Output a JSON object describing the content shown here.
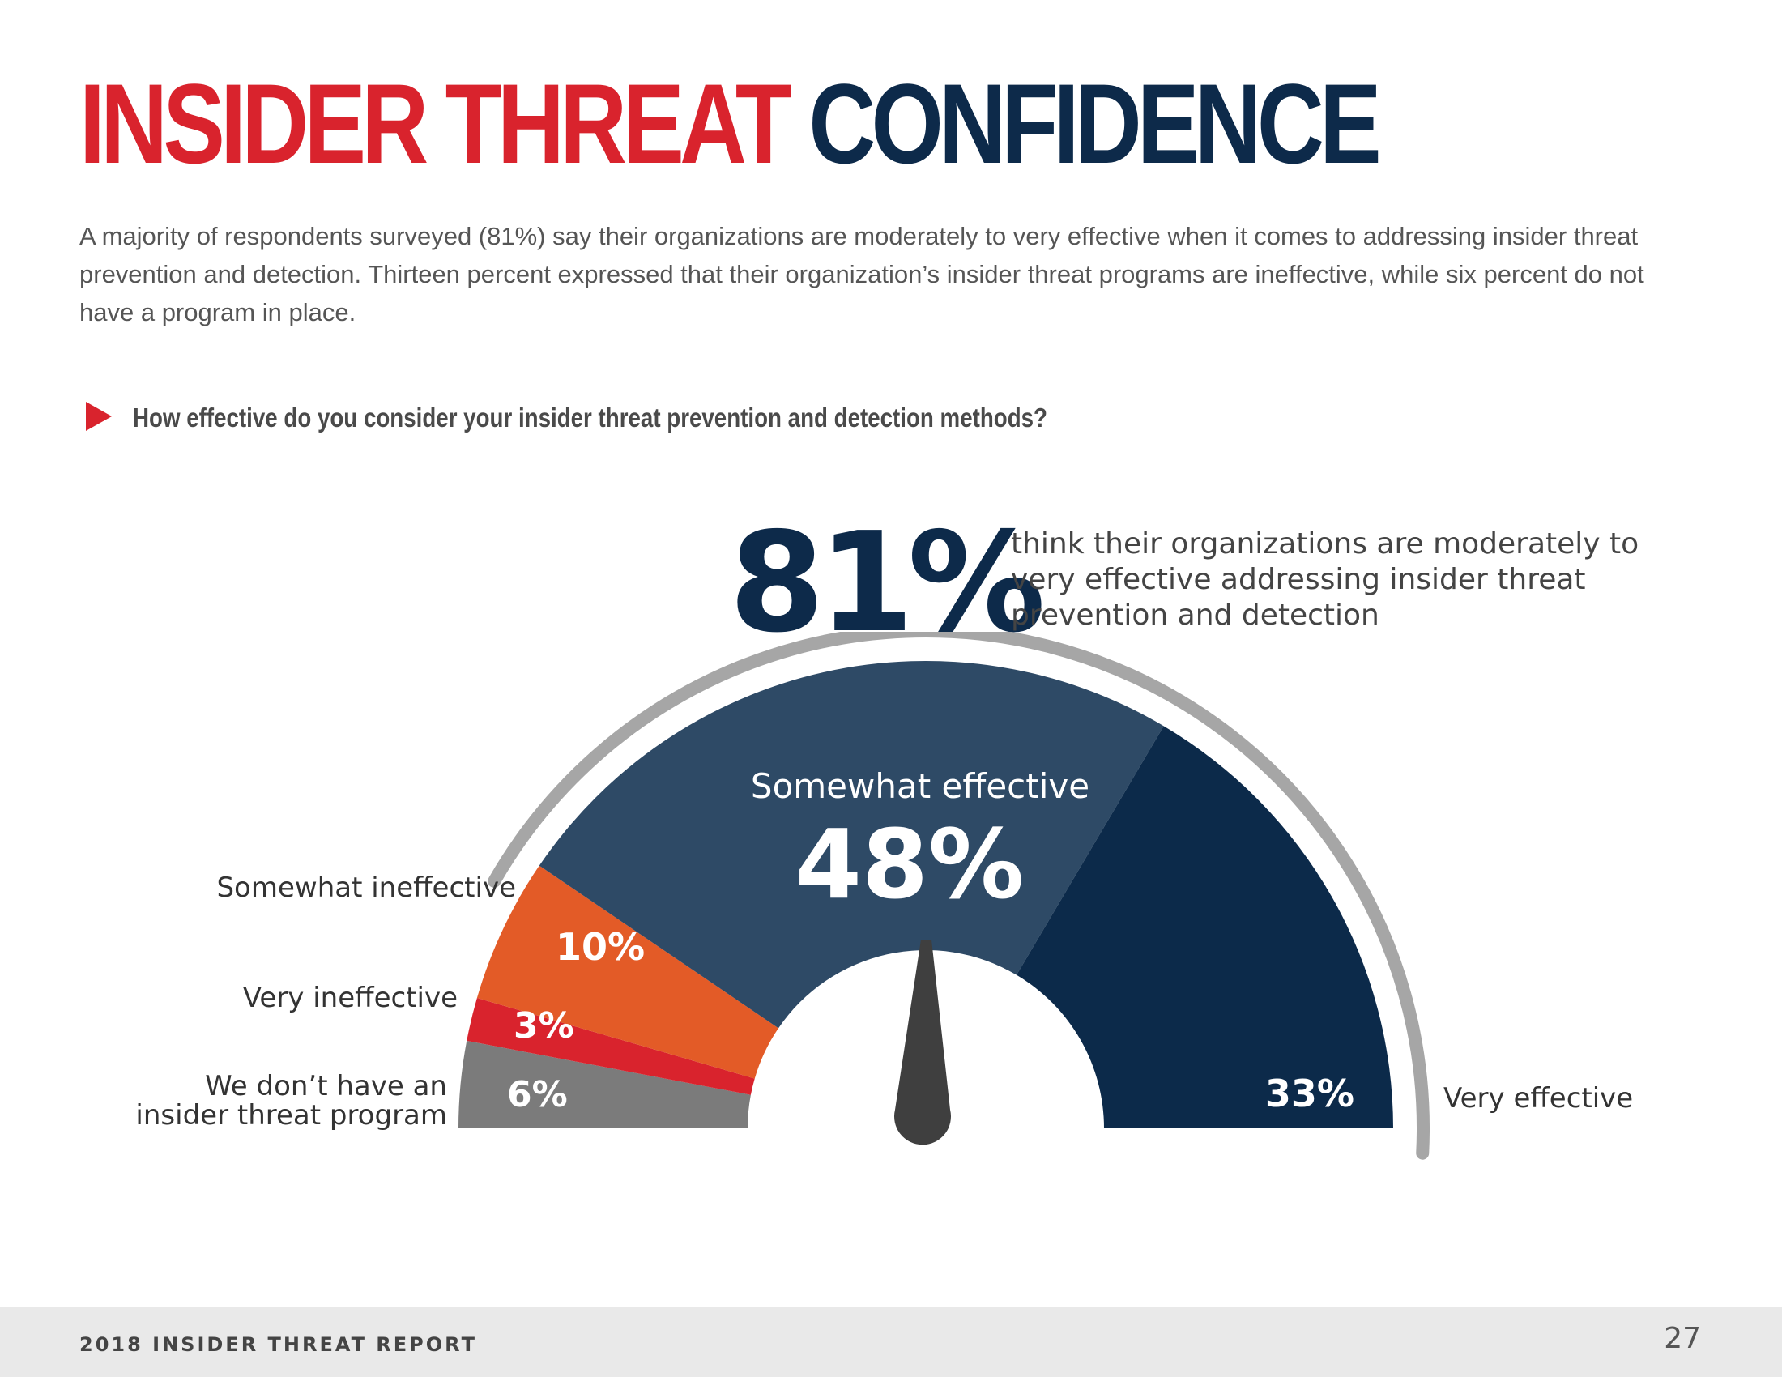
{
  "title": {
    "part1": "INSIDER THREAT",
    "part2": "CONFIDENCE"
  },
  "intro": "A majority of respondents surveyed (81%) say their organizations are moderately to very effective when it comes to addressing insider threat prevention and detection.  Thirteen percent expressed that their organization’s insider threat programs are ineffective, while six percent do not have a program in place.",
  "question": "How effective do you consider your insider threat prevention and detection methods?",
  "headline": {
    "value": "81%",
    "text": "think their organizations are moderately to very effective addressing insider threat prevention and detection"
  },
  "colors": {
    "title_red": "#d9232d",
    "title_navy": "#0d2a4a",
    "outer_arc": "#a6a6a6",
    "needle": "#3f3f3f"
  },
  "chart_data": {
    "type": "gauge",
    "unit": "%",
    "segments": [
      {
        "id": "none",
        "label_lines": [
          "We don’t have an",
          "insider threat program"
        ],
        "value": 6,
        "value_label": "6%",
        "color": "#7b7b7b"
      },
      {
        "id": "very-ineffective",
        "label_lines": [
          "Very ineffective"
        ],
        "value": 3,
        "value_label": "3%",
        "color": "#d9232d"
      },
      {
        "id": "somewhat-ineffective",
        "label_lines": [
          "Somewhat ineffective"
        ],
        "value": 10,
        "value_label": "10%",
        "color": "#e35b27"
      },
      {
        "id": "somewhat-effective",
        "label_lines": [
          "Somewhat effective"
        ],
        "value": 48,
        "value_label": "48%",
        "color": "#2e4a66"
      },
      {
        "id": "very-effective",
        "label_lines": [
          "Very effective"
        ],
        "value": 33,
        "value_label": "33%",
        "color": "#0c2a4a"
      }
    ]
  },
  "footer": {
    "report_label": "2018 INSIDER THREAT REPORT",
    "page_number": "27"
  }
}
